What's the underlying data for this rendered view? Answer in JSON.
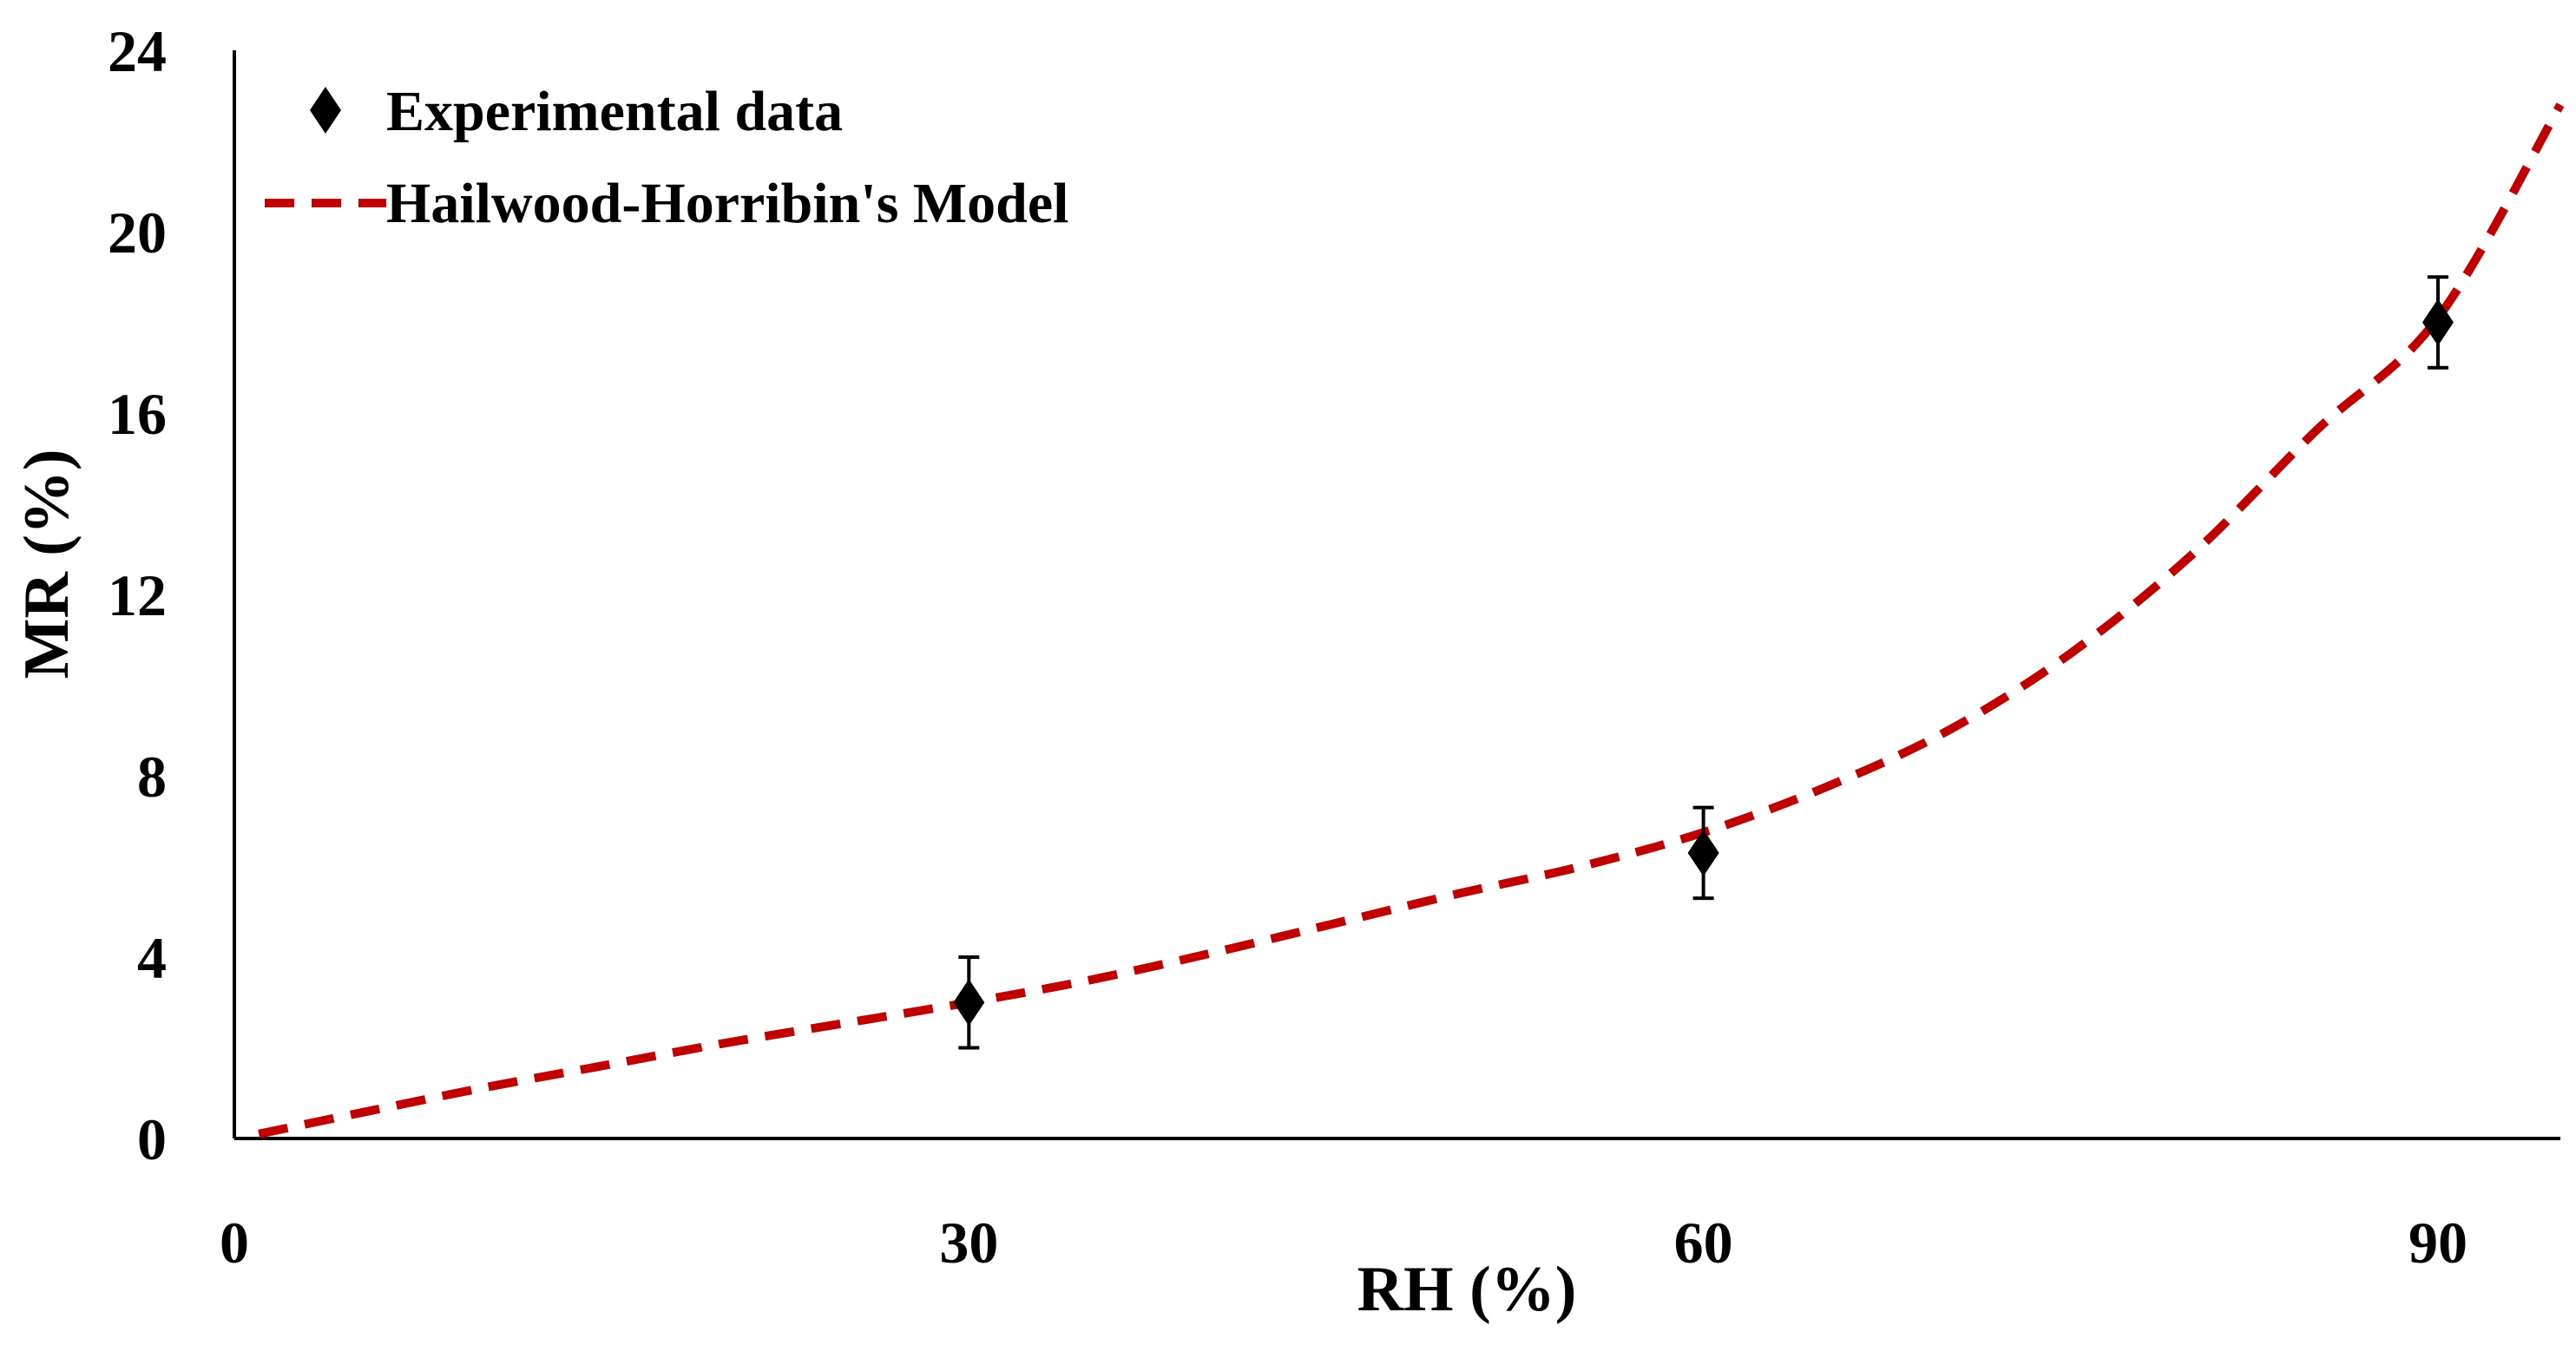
{
  "chart_data": {
    "type": "scatter",
    "xlabel": "RH (%)",
    "ylabel": "MR (%)",
    "xlim": [
      0,
      95
    ],
    "ylim": [
      0,
      24
    ],
    "x_ticks": [
      "0",
      "30",
      "60",
      "90"
    ],
    "y_ticks": [
      "0",
      "4",
      "8",
      "12",
      "16",
      "20",
      "24"
    ],
    "grid": false,
    "legend_position": "top-left",
    "series": [
      {
        "name": "Experimental data",
        "kind": "scatter",
        "marker": "diamond",
        "color": "#000000",
        "x": [
          30,
          60,
          90
        ],
        "y": [
          3.0,
          6.3,
          18.0
        ],
        "error": [
          1.0,
          1.0,
          1.0
        ]
      },
      {
        "name": "Hailwood-Horribin's Model",
        "kind": "line",
        "style": "dashed",
        "color": "#c00000",
        "x": [
          1,
          5,
          10,
          15,
          20,
          25,
          30,
          35,
          40,
          45,
          50,
          55,
          60,
          65,
          70,
          75,
          80,
          85,
          90,
          95
        ],
        "y": [
          0.1,
          0.55,
          1.1,
          1.6,
          2.1,
          2.55,
          3.0,
          3.5,
          4.1,
          4.75,
          5.4,
          6.0,
          6.75,
          7.75,
          9.0,
          10.7,
          12.9,
          15.6,
          18.1,
          22.8
        ]
      }
    ]
  }
}
